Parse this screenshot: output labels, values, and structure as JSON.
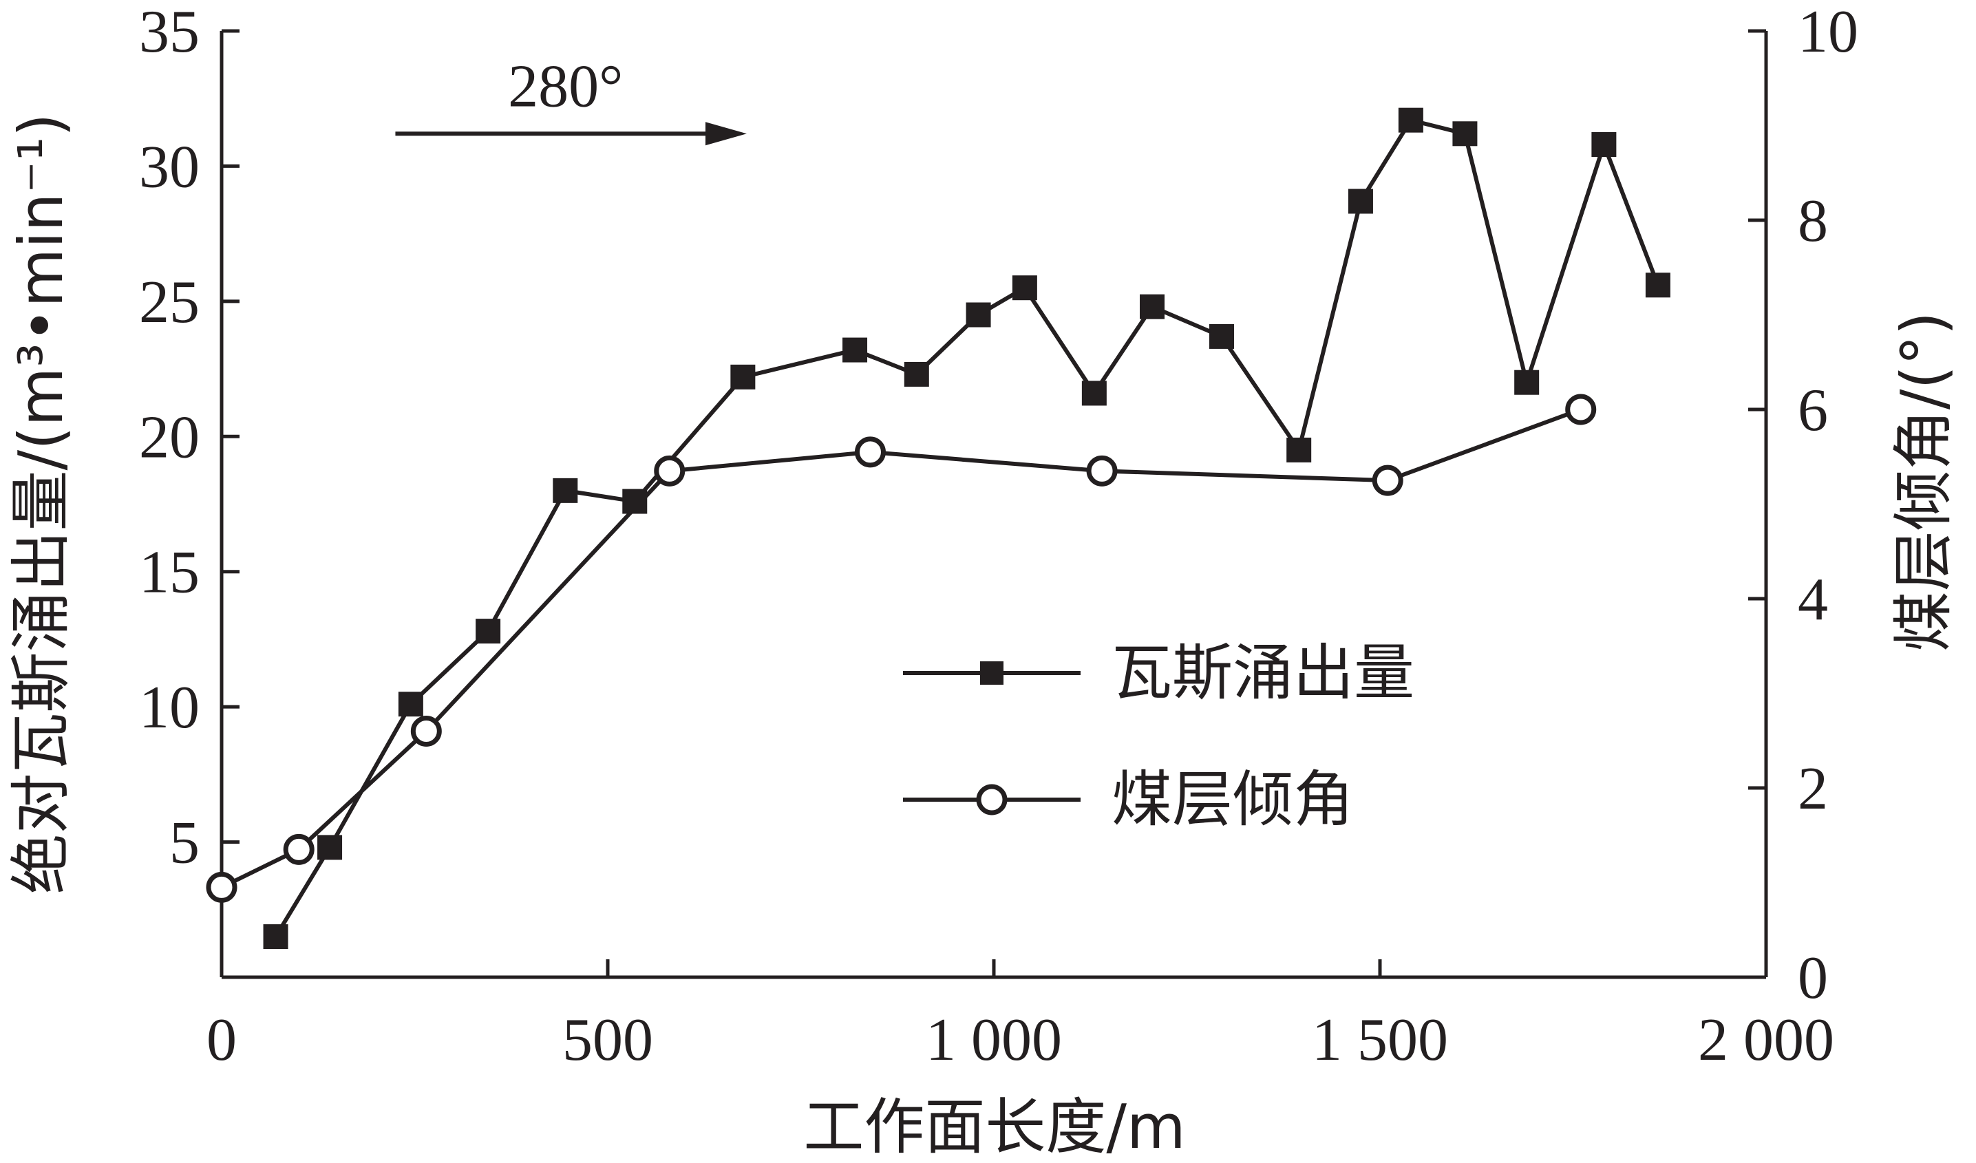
{
  "chart_data": {
    "type": "line",
    "xlabel": "工作面长度/m",
    "ylabel_left": "绝对瓦斯涌出量/(m³•min⁻¹)",
    "ylabel_right": "煤层倾角/(°)",
    "xlim": [
      0,
      2000
    ],
    "ylim_left": [
      0,
      35
    ],
    "ylim_right": [
      0,
      10
    ],
    "x_ticks": [
      0,
      500,
      1000,
      1500,
      2000
    ],
    "x_tick_labels": [
      "0",
      "500",
      "1 000",
      "1 500",
      "2 000"
    ],
    "y_left_ticks": [
      5,
      10,
      15,
      20,
      25,
      30,
      35
    ],
    "y_left_tick_labels": [
      "5",
      "10",
      "15",
      "20",
      "25",
      "30",
      "35"
    ],
    "y_right_ticks": [
      0,
      2,
      4,
      6,
      8,
      10
    ],
    "y_right_tick_labels": [
      "0",
      "2",
      "4",
      "6",
      "8",
      "10"
    ],
    "grid": false,
    "legend_position": "center-right",
    "annotation": {
      "text": "280°",
      "x_start": 225,
      "x_end": 680,
      "y": 31.2
    },
    "series": [
      {
        "name": "瓦斯涌出量",
        "axis": "left",
        "marker": "filled-square",
        "x": [
          70,
          140,
          245,
          345,
          445,
          535,
          675,
          820,
          900,
          980,
          1040,
          1130,
          1205,
          1295,
          1395,
          1475,
          1540,
          1610,
          1690,
          1790,
          1860
        ],
        "y": [
          1.5,
          4.8,
          10.1,
          12.8,
          18.0,
          17.6,
          22.2,
          23.2,
          22.3,
          24.5,
          25.5,
          21.6,
          24.8,
          23.7,
          19.5,
          28.7,
          31.7,
          31.2,
          22.0,
          30.8,
          25.6
        ]
      },
      {
        "name": "煤层倾角",
        "axis": "right",
        "marker": "open-circle",
        "x": [
          0,
          100,
          265,
          580,
          840,
          1140,
          1510,
          1760
        ],
        "y": [
          0.95,
          1.35,
          2.6,
          5.35,
          5.55,
          5.35,
          5.25,
          6.0
        ]
      }
    ]
  }
}
